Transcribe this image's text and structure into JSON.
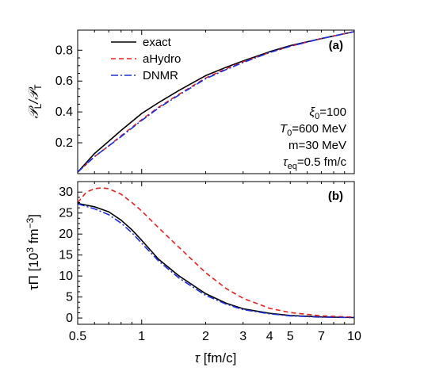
{
  "chart_data": [
    {
      "type": "line",
      "panel_label": "(a)",
      "xscale": "log",
      "xlim": [
        0.5,
        10
      ],
      "ylim": [
        0.0,
        0.93
      ],
      "yticks": [
        "0.2",
        "0.4",
        "0.6",
        "0.8"
      ],
      "xlabel": "",
      "ylabel_main": "𝒫",
      "ylabel_sub1": "L",
      "ylabel_mid": "/𝒫",
      "ylabel_sub2": "T",
      "legend": [
        "exact",
        "aHydro",
        "DNMR"
      ],
      "legend_position": "top-left",
      "annotations": {
        "xi_sym": "ξ",
        "xi_sub": "0",
        "xi_val": "=100",
        "t0_sym": "T",
        "t0_sub": "0",
        "t0_val": "=600 MeV",
        "m_line": "m=30 MeV",
        "tau_sym": "τ",
        "tau_sub": "eq",
        "tau_val": "=0.5 fm/c"
      },
      "series": [
        {
          "name": "exact",
          "color": "#000000",
          "style": "solid",
          "x": [
            0.5,
            0.6,
            0.7,
            0.8,
            1.0,
            1.2,
            1.5,
            2.0,
            2.5,
            3.0,
            4.0,
            5.0,
            7.0,
            10.0
          ],
          "y": [
            0.01,
            0.13,
            0.21,
            0.28,
            0.39,
            0.46,
            0.54,
            0.635,
            0.69,
            0.73,
            0.79,
            0.83,
            0.875,
            0.92
          ]
        },
        {
          "name": "aHydro",
          "color": "#e8231f",
          "style": "dashed",
          "x": [
            0.5,
            0.6,
            0.7,
            0.8,
            1.0,
            1.2,
            1.5,
            2.0,
            2.5,
            3.0,
            4.0,
            5.0,
            7.0,
            10.0
          ],
          "y": [
            0.01,
            0.11,
            0.18,
            0.245,
            0.35,
            0.43,
            0.515,
            0.62,
            0.68,
            0.725,
            0.785,
            0.825,
            0.875,
            0.92
          ]
        },
        {
          "name": "DNMR",
          "color": "#1a2ee0",
          "style": "dashdot",
          "x": [
            0.5,
            0.6,
            0.7,
            0.8,
            1.0,
            1.2,
            1.5,
            2.0,
            2.5,
            3.0,
            4.0,
            5.0,
            7.0,
            10.0
          ],
          "y": [
            0.01,
            0.11,
            0.18,
            0.24,
            0.345,
            0.425,
            0.51,
            0.615,
            0.675,
            0.72,
            0.785,
            0.825,
            0.875,
            0.92
          ]
        }
      ]
    },
    {
      "type": "line",
      "panel_label": "(b)",
      "xscale": "log",
      "xlim": [
        0.5,
        10
      ],
      "ylim": [
        -1.5,
        32.5
      ],
      "xticks": [
        "0.5",
        "1",
        "2",
        "3",
        "4",
        "5",
        "7",
        "10"
      ],
      "yticks": [
        "0",
        "5",
        "10",
        "15",
        "20",
        "25",
        "30"
      ],
      "xlabel_sym": "τ",
      "xlabel_rest": " [fm/c]",
      "ylabel_main": "τΠ [10",
      "ylabel_sup1": "3",
      "ylabel_mid": " fm",
      "ylabel_sup2": "−3",
      "ylabel_end": "]",
      "series": [
        {
          "name": "exact",
          "color": "#000000",
          "style": "solid",
          "x": [
            0.5,
            0.6,
            0.7,
            0.8,
            0.9,
            1.0,
            1.2,
            1.5,
            2.0,
            2.5,
            3.0,
            4.0,
            5.0,
            7.0,
            10.0
          ],
          "y": [
            27.3,
            26.5,
            25.3,
            23.3,
            21.0,
            18.5,
            14.0,
            10.0,
            5.8,
            3.5,
            2.2,
            1.1,
            0.6,
            0.25,
            0.1
          ]
        },
        {
          "name": "aHydro",
          "color": "#e8231f",
          "style": "dashed",
          "x": [
            0.5,
            0.55,
            0.6,
            0.65,
            0.7,
            0.8,
            0.9,
            1.0,
            1.2,
            1.5,
            2.0,
            2.5,
            3.0,
            4.0,
            5.0,
            7.0,
            10.0
          ],
          "y": [
            27.5,
            30.0,
            30.8,
            31.0,
            30.8,
            29.5,
            27.5,
            25.5,
            21.5,
            16.8,
            10.8,
            7.0,
            4.7,
            2.3,
            1.3,
            0.5,
            0.2
          ]
        },
        {
          "name": "DNMR",
          "color": "#1a2ee0",
          "style": "dashdot",
          "x": [
            0.5,
            0.6,
            0.7,
            0.8,
            0.9,
            1.0,
            1.2,
            1.5,
            2.0,
            2.5,
            3.0,
            4.0,
            5.0,
            7.0,
            10.0
          ],
          "y": [
            27.2,
            26.0,
            24.6,
            22.6,
            20.3,
            17.8,
            13.6,
            9.5,
            5.4,
            3.3,
            2.0,
            1.0,
            0.5,
            0.2,
            0.1
          ]
        }
      ]
    }
  ]
}
